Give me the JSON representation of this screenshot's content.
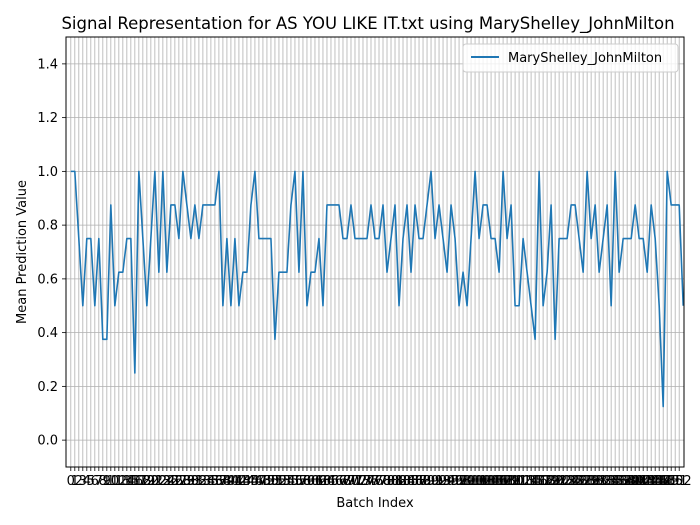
{
  "chart_data": {
    "type": "line",
    "title": "Signal Representation for AS YOU LIKE IT.txt using MaryShelley_JohnMilton",
    "xlabel": "Batch Index",
    "ylabel": "Mean Prediction Value",
    "xlim": [
      -1.2,
      153.2
    ],
    "ylim": [
      -0.1,
      1.5
    ],
    "yticks": [
      0.0,
      0.2,
      0.4,
      0.6,
      0.8,
      1.0,
      1.2,
      1.4
    ],
    "xticks_count": 153,
    "grid": true,
    "legend_position": "top-right",
    "colors": {
      "line": "#1f77b4",
      "grid": "#b0b0b0"
    },
    "series": [
      {
        "name": "MaryShelley_JohnMilton",
        "values": [
          1.0,
          1.0,
          0.75,
          0.5,
          0.75,
          0.75,
          0.5,
          0.75,
          0.375,
          0.375,
          0.875,
          0.5,
          0.625,
          0.625,
          0.75,
          0.75,
          0.25,
          1.0,
          0.75,
          0.5,
          0.75,
          1.0,
          0.625,
          1.0,
          0.625,
          0.875,
          0.875,
          0.75,
          1.0,
          0.875,
          0.75,
          0.875,
          0.75,
          0.875,
          0.875,
          0.875,
          0.875,
          1.0,
          0.5,
          0.75,
          0.5,
          0.75,
          0.5,
          0.625,
          0.625,
          0.875,
          1.0,
          0.75,
          0.75,
          0.75,
          0.75,
          0.375,
          0.625,
          0.625,
          0.625,
          0.875,
          1.0,
          0.625,
          1.0,
          0.5,
          0.625,
          0.625,
          0.75,
          0.5,
          0.875,
          0.875,
          0.875,
          0.875,
          0.75,
          0.75,
          0.875,
          0.75,
          0.75,
          0.75,
          0.75,
          0.875,
          0.75,
          0.75,
          0.875,
          0.625,
          0.75,
          0.875,
          0.5,
          0.75,
          0.875,
          0.625,
          0.875,
          0.75,
          0.75,
          0.875,
          1.0,
          0.75,
          0.875,
          0.75,
          0.625,
          0.875,
          0.75,
          0.5,
          0.625,
          0.5,
          0.75,
          1.0,
          0.75,
          0.875,
          0.875,
          0.75,
          0.75,
          0.625,
          1.0,
          0.75,
          0.875,
          0.5,
          0.5,
          0.75,
          0.625,
          0.5,
          0.375,
          1.0,
          0.5,
          0.625,
          0.875,
          0.375,
          0.75,
          0.75,
          0.75,
          0.875,
          0.875,
          0.75,
          0.625,
          1.0,
          0.75,
          0.875,
          0.625,
          0.75,
          0.875,
          0.5,
          1.0,
          0.625,
          0.75,
          0.75,
          0.75,
          0.875,
          0.75,
          0.75,
          0.625,
          0.875,
          0.75,
          0.5,
          0.125,
          1.0,
          0.875,
          0.875,
          0.875,
          0.5
        ]
      }
    ]
  }
}
